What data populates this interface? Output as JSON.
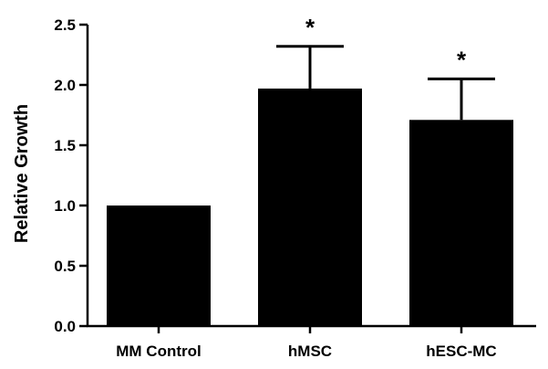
{
  "chart_data": {
    "type": "bar",
    "categories": [
      "MM Control",
      "hMSC",
      "hESC-MC"
    ],
    "values": [
      1.0,
      1.97,
      1.71
    ],
    "errors": [
      0.0,
      0.35,
      0.34
    ],
    "annotations": [
      "",
      "*",
      "*"
    ],
    "ylabel": "Relative Growth",
    "xlabel": "",
    "ylim": [
      0,
      2.5
    ],
    "yticks": [
      0.0,
      0.5,
      1.0,
      1.5,
      2.0,
      2.5
    ],
    "ytick_labels": [
      "0.0",
      "0.5",
      "1.0",
      "1.5",
      "2.0",
      "2.5"
    ],
    "grid": false,
    "legend": "none",
    "bar_color": "#000000"
  }
}
